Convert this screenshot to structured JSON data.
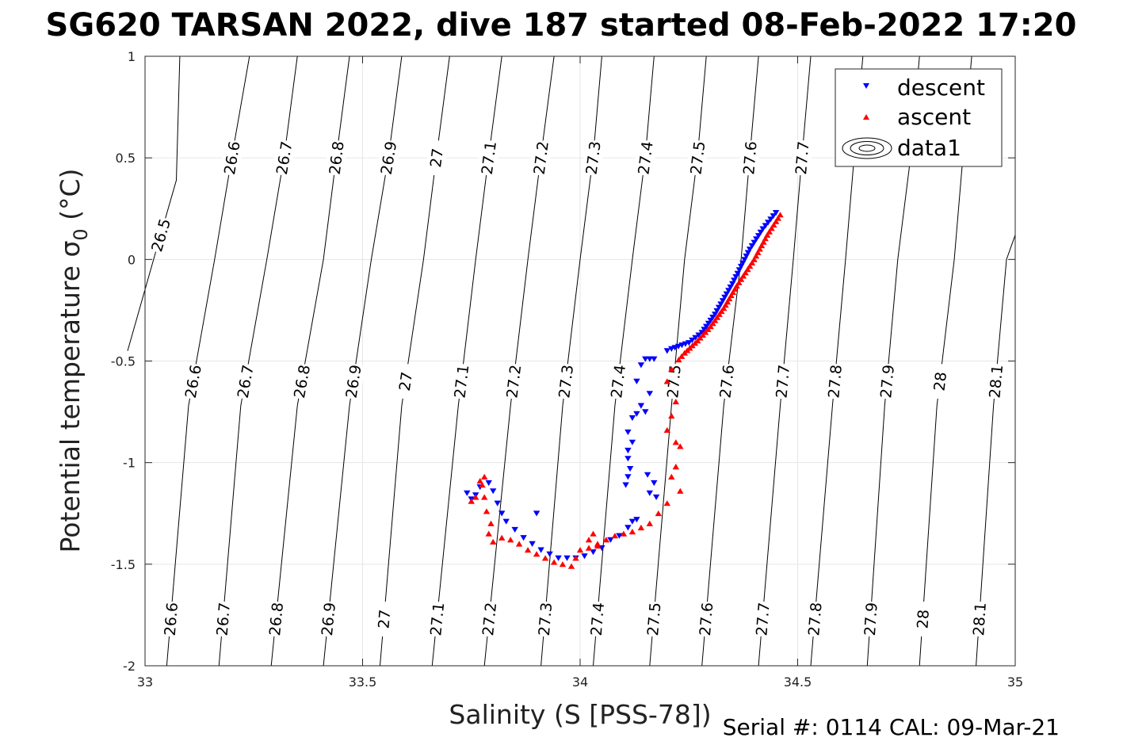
{
  "chart_data": {
    "type": "scatter",
    "title": "SG620 TARSAN 2022, dive 187 started 08-Feb-2022 17:20",
    "xlabel": "Salinity (S [PSS-78])",
    "ylabel": "Potential temperature σ",
    "ylabel_sub": "0",
    "ylabel_unit": " (°C)",
    "xlim": [
      33,
      35
    ],
    "ylim": [
      -2,
      1
    ],
    "x_ticks": [
      33,
      33.5,
      34,
      34.5,
      35
    ],
    "y_ticks": [
      1,
      0.5,
      0,
      -0.5,
      -1,
      -1.5,
      -2
    ],
    "x_tick_labels": [
      "33",
      "33.5",
      "34",
      "34.5",
      "35"
    ],
    "y_tick_labels": [
      "1",
      "0.5",
      "0",
      "-0.5",
      "-1",
      "-1.5",
      "-2"
    ],
    "grid": true,
    "legend_position": "top-right",
    "footer": "Serial #: 0114  CAL: 09-Mar-21",
    "contours": {
      "levels": [
        "26.5",
        "26.6",
        "26.7",
        "26.8",
        "26.9",
        "27",
        "27.1",
        "27.2",
        "27.3",
        "27.4",
        "27.5",
        "27.6",
        "27.7",
        "27.8",
        "27.9",
        "28",
        "28.1"
      ],
      "lines": [
        {
          "label": "26.5",
          "pts": [
            [
              32.96,
              -0.45
            ],
            [
              33.025,
              0.04
            ],
            [
              33.072,
              0.39
            ],
            [
              33.08,
              1.0
            ]
          ]
        },
        {
          "label": "26.6",
          "pts": [
            [
              33.05,
              -2.0
            ],
            [
              33.1,
              -0.72
            ],
            [
              33.16,
              0.0
            ],
            [
              33.2,
              0.51
            ],
            [
              33.24,
              1.0
            ]
          ]
        },
        {
          "label": "26.7",
          "pts": [
            [
              33.17,
              -2.0
            ],
            [
              33.22,
              -0.72
            ],
            [
              33.28,
              0.0
            ],
            [
              33.32,
              0.51
            ],
            [
              33.35,
              1.0
            ]
          ]
        },
        {
          "label": "26.8",
          "pts": [
            [
              33.29,
              -2.0
            ],
            [
              33.35,
              -0.72
            ],
            [
              33.41,
              0.0
            ],
            [
              33.44,
              0.51
            ],
            [
              33.47,
              1.0
            ]
          ]
        },
        {
          "label": "26.9",
          "pts": [
            [
              33.41,
              -2.0
            ],
            [
              33.47,
              -0.72
            ],
            [
              33.52,
              0.0
            ],
            [
              33.56,
              0.51
            ],
            [
              33.59,
              1.0
            ]
          ]
        },
        {
          "label": "27",
          "pts": [
            [
              33.54,
              -2.0
            ],
            [
              33.59,
              -0.72
            ],
            [
              33.64,
              0.0
            ],
            [
              33.67,
              0.51
            ],
            [
              33.7,
              1.0
            ]
          ]
        },
        {
          "label": "27.1",
          "pts": [
            [
              33.66,
              -2.0
            ],
            [
              33.72,
              -0.72
            ],
            [
              33.76,
              0.0
            ],
            [
              33.79,
              0.51
            ],
            [
              33.82,
              1.0
            ]
          ]
        },
        {
          "label": "27.2",
          "pts": [
            [
              33.78,
              -2.0
            ],
            [
              33.84,
              -0.72
            ],
            [
              33.88,
              0.0
            ],
            [
              33.91,
              0.51
            ],
            [
              33.94,
              1.0
            ]
          ]
        },
        {
          "label": "27.3",
          "pts": [
            [
              33.91,
              -2.0
            ],
            [
              33.96,
              -0.72
            ],
            [
              34.0,
              0.0
            ],
            [
              34.03,
              0.51
            ],
            [
              34.05,
              1.0
            ]
          ]
        },
        {
          "label": "27.4",
          "pts": [
            [
              34.03,
              -2.0
            ],
            [
              34.08,
              -0.72
            ],
            [
              34.12,
              0.0
            ],
            [
              34.15,
              0.51
            ],
            [
              34.17,
              1.0
            ]
          ]
        },
        {
          "label": "27.5",
          "pts": [
            [
              34.16,
              -2.0
            ],
            [
              34.21,
              -0.72
            ],
            [
              34.24,
              0.0
            ],
            [
              34.27,
              0.51
            ],
            [
              34.29,
              1.0
            ]
          ]
        },
        {
          "label": "27.6",
          "pts": [
            [
              34.28,
              -2.0
            ],
            [
              34.33,
              -0.72
            ],
            [
              34.37,
              0.0
            ],
            [
              34.39,
              0.51
            ],
            [
              34.41,
              1.0
            ]
          ]
        },
        {
          "label": "27.7",
          "pts": [
            [
              34.41,
              -2.0
            ],
            [
              34.46,
              -0.72
            ],
            [
              34.49,
              0.0
            ],
            [
              34.51,
              0.51
            ],
            [
              34.53,
              1.0
            ]
          ]
        },
        {
          "label": "27.8",
          "pts": [
            [
              34.53,
              -2.0
            ],
            [
              34.58,
              -0.72
            ],
            [
              34.61,
              0.0
            ],
            [
              34.63,
              0.51
            ],
            [
              34.65,
              1.0
            ]
          ]
        },
        {
          "label": "27.9",
          "pts": [
            [
              34.66,
              -2.0
            ],
            [
              34.7,
              -0.72
            ],
            [
              34.73,
              0.0
            ],
            [
              34.76,
              0.51
            ],
            [
              34.78,
              1.0
            ]
          ]
        },
        {
          "label": "28",
          "pts": [
            [
              34.78,
              -2.0
            ],
            [
              34.82,
              -0.72
            ],
            [
              34.86,
              0.0
            ],
            [
              34.88,
              0.51
            ],
            [
              34.9,
              1.0
            ]
          ]
        },
        {
          "label": "28.1",
          "pts": [
            [
              34.91,
              -2.0
            ],
            [
              34.95,
              -0.72
            ],
            [
              34.98,
              0.0
            ],
            [
              35.0,
              0.12
            ]
          ]
        }
      ],
      "label_rows": [
        {
          "theta": 0.5,
          "labels": [
            "26.6",
            "26.7",
            "26.8",
            "26.9",
            "27",
            "27.1",
            "27.2",
            "27.3",
            "27.4",
            "27.5",
            "27.6",
            "27.7"
          ]
        },
        {
          "theta": -0.6,
          "labels": [
            "26.6",
            "26.7",
            "26.8",
            "26.9",
            "27",
            "27.1",
            "27.2",
            "27.3",
            "27.4",
            "27.5",
            "27.6",
            "27.7",
            "27.8",
            "27.9",
            "28",
            "28.1"
          ]
        },
        {
          "theta": -1.77,
          "labels": [
            "26.6",
            "26.7",
            "26.8",
            "26.9",
            "27",
            "27.1",
            "27.2",
            "27.3",
            "27.4",
            "27.5",
            "27.6",
            "27.7",
            "27.8",
            "27.9",
            "28",
            "28.1"
          ]
        },
        {
          "theta": 0.12,
          "labels": [
            "26.5"
          ]
        }
      ]
    },
    "series": [
      {
        "name": "descent",
        "marker": "triangle-down",
        "color": "#0000ff",
        "path": [
          [
            34.45,
            0.23
          ],
          [
            34.42,
            0.15
          ],
          [
            34.39,
            0.05
          ],
          [
            34.35,
            -0.12
          ],
          [
            34.31,
            -0.27
          ],
          [
            34.28,
            -0.36
          ],
          [
            34.25,
            -0.41
          ],
          [
            34.21,
            -0.44
          ],
          [
            34.19,
            -0.46
          ]
        ],
        "points": [
          [
            34.17,
            -0.49
          ],
          [
            34.16,
            -0.49
          ],
          [
            34.15,
            -0.49
          ],
          [
            34.14,
            -0.52
          ],
          [
            34.13,
            -0.6
          ],
          [
            34.14,
            -0.72
          ],
          [
            34.16,
            -0.66
          ],
          [
            34.15,
            -0.75
          ],
          [
            34.13,
            -0.76
          ],
          [
            34.12,
            -0.78
          ],
          [
            34.11,
            -0.85
          ],
          [
            34.12,
            -0.9
          ],
          [
            34.11,
            -0.94
          ],
          [
            34.11,
            -0.98
          ],
          [
            34.115,
            -1.03
          ],
          [
            34.11,
            -1.07
          ],
          [
            34.105,
            -1.11
          ],
          [
            34.155,
            -1.06
          ],
          [
            34.17,
            -1.1
          ],
          [
            34.16,
            -1.15
          ],
          [
            34.175,
            -1.17
          ],
          [
            34.13,
            -1.28
          ],
          [
            34.12,
            -1.29
          ],
          [
            34.11,
            -1.32
          ],
          [
            34.09,
            -1.36
          ],
          [
            34.07,
            -1.38
          ],
          [
            34.05,
            -1.42
          ],
          [
            34.03,
            -1.44
          ],
          [
            34.01,
            -1.46
          ],
          [
            33.99,
            -1.47
          ],
          [
            33.97,
            -1.47
          ],
          [
            33.95,
            -1.47
          ],
          [
            33.93,
            -1.45
          ],
          [
            33.91,
            -1.43
          ],
          [
            33.89,
            -1.4
          ],
          [
            33.87,
            -1.37
          ],
          [
            33.85,
            -1.33
          ],
          [
            33.83,
            -1.29
          ],
          [
            33.82,
            -1.25
          ],
          [
            33.81,
            -1.2
          ],
          [
            33.8,
            -1.14
          ],
          [
            33.79,
            -1.1
          ],
          [
            33.77,
            -1.12
          ],
          [
            33.76,
            -1.16
          ],
          [
            33.75,
            -1.18
          ],
          [
            33.74,
            -1.15
          ],
          [
            33.9,
            -1.25
          ]
        ]
      },
      {
        "name": "ascent",
        "marker": "triangle-up",
        "color": "#ff0000",
        "path": [
          [
            34.46,
            0.22
          ],
          [
            34.43,
            0.12
          ],
          [
            34.4,
            0.0
          ],
          [
            34.36,
            -0.13
          ],
          [
            34.33,
            -0.24
          ],
          [
            34.3,
            -0.33
          ],
          [
            34.27,
            -0.4
          ],
          [
            34.24,
            -0.46
          ],
          [
            34.22,
            -0.51
          ]
        ],
        "points": [
          [
            34.21,
            -0.54
          ],
          [
            34.2,
            -0.6
          ],
          [
            34.22,
            -0.7
          ],
          [
            34.21,
            -0.77
          ],
          [
            34.2,
            -0.84
          ],
          [
            34.22,
            -0.9
          ],
          [
            34.23,
            -0.92
          ],
          [
            34.22,
            -1.02
          ],
          [
            34.21,
            -1.07
          ],
          [
            34.23,
            -1.14
          ],
          [
            34.2,
            -1.2
          ],
          [
            34.18,
            -1.25
          ],
          [
            34.16,
            -1.3
          ],
          [
            34.14,
            -1.32
          ],
          [
            34.12,
            -1.34
          ],
          [
            34.1,
            -1.35
          ],
          [
            34.08,
            -1.36
          ],
          [
            34.06,
            -1.38
          ],
          [
            34.04,
            -1.41
          ],
          [
            34.02,
            -1.42
          ],
          [
            34.0,
            -1.43
          ],
          [
            33.99,
            -1.47
          ],
          [
            33.98,
            -1.51
          ],
          [
            33.96,
            -1.5
          ],
          [
            33.94,
            -1.49
          ],
          [
            33.92,
            -1.47
          ],
          [
            33.9,
            -1.45
          ],
          [
            33.88,
            -1.43
          ],
          [
            33.86,
            -1.4
          ],
          [
            33.84,
            -1.38
          ],
          [
            33.82,
            -1.37
          ],
          [
            33.8,
            -1.39
          ],
          [
            33.79,
            -1.35
          ],
          [
            33.795,
            -1.3
          ],
          [
            33.785,
            -1.24
          ],
          [
            33.78,
            -1.17
          ],
          [
            33.775,
            -1.11
          ],
          [
            33.78,
            -1.07
          ],
          [
            33.77,
            -1.09
          ],
          [
            33.76,
            -1.17
          ],
          [
            33.75,
            -1.19
          ],
          [
            34.03,
            -1.35
          ],
          [
            34.02,
            -1.38
          ],
          [
            34.04,
            -1.4
          ]
        ]
      }
    ],
    "legend": [
      {
        "label": "descent"
      },
      {
        "label": "ascent"
      },
      {
        "label": "data1"
      }
    ]
  }
}
